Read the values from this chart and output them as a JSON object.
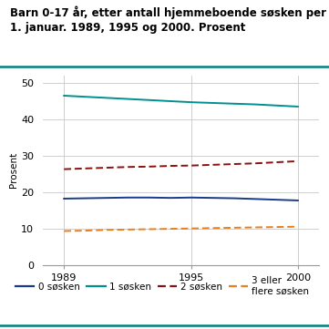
{
  "title_line1": "Barn 0-17 år, etter antall hjemmeboende søsken per",
  "title_line2": "1. januar. 1989, 1995 og 2000. Prosent",
  "ylabel": "Prosent",
  "xlim": [
    1988.0,
    2001.0
  ],
  "ylim": [
    0,
    52
  ],
  "yticks": [
    0,
    10,
    20,
    30,
    40,
    50
  ],
  "xticks": [
    1989,
    1995,
    2000
  ],
  "series": [
    {
      "label": "0 søsken",
      "x": [
        1989,
        1990,
        1991,
        1992,
        1993,
        1994,
        1995,
        1996,
        1997,
        1998,
        1999,
        2000
      ],
      "y": [
        18.2,
        18.3,
        18.4,
        18.5,
        18.5,
        18.4,
        18.5,
        18.4,
        18.3,
        18.1,
        17.9,
        17.7
      ],
      "color": "#1a3a8c",
      "linestyle": "solid",
      "linewidth": 1.4
    },
    {
      "label": "1 søsken",
      "x": [
        1989,
        1990,
        1991,
        1992,
        1993,
        1994,
        1995,
        1996,
        1997,
        1998,
        1999,
        2000
      ],
      "y": [
        46.5,
        46.2,
        45.9,
        45.6,
        45.3,
        45.0,
        44.7,
        44.5,
        44.3,
        44.1,
        43.8,
        43.5
      ],
      "color": "#009090",
      "linestyle": "solid",
      "linewidth": 1.4
    },
    {
      "label": "2 søsken",
      "x": [
        1989,
        1990,
        1991,
        1992,
        1993,
        1994,
        1995,
        1996,
        1997,
        1998,
        1999,
        2000
      ],
      "y": [
        26.3,
        26.5,
        26.7,
        26.9,
        27.0,
        27.2,
        27.3,
        27.5,
        27.7,
        27.9,
        28.2,
        28.5
      ],
      "color": "#8b1010",
      "linestyle": "dashed",
      "linewidth": 1.4,
      "dashes": [
        4,
        2
      ]
    },
    {
      "label": "3 eller\nflere søsken",
      "x": [
        1989,
        1990,
        1991,
        1992,
        1993,
        1994,
        1995,
        1996,
        1997,
        1998,
        1999,
        2000
      ],
      "y": [
        9.3,
        9.4,
        9.6,
        9.7,
        9.8,
        9.9,
        10.0,
        10.1,
        10.2,
        10.3,
        10.4,
        10.5
      ],
      "color": "#e88020",
      "linestyle": "dashed",
      "linewidth": 1.4,
      "dashes": [
        4,
        2
      ]
    }
  ],
  "legend_labels": [
    "0 søsken",
    "1 søsken",
    "2 søsken",
    "3 eller\nflere søsken"
  ],
  "legend_colors": [
    "#1a3a8c",
    "#009090",
    "#8b1010",
    "#e88020"
  ],
  "legend_linestyles": [
    "solid",
    "solid",
    "dashed",
    "dashed"
  ],
  "legend_dashes": [
    null,
    null,
    [
      4,
      2
    ],
    [
      4,
      2
    ]
  ],
  "title_fontsize": 8.5,
  "axis_label_fontsize": 7.5,
  "tick_fontsize": 8,
  "legend_fontsize": 7.5,
  "bg_color": "#ffffff",
  "header_line_color": "#008080",
  "grid_color": "#c8c8c8",
  "title_bg_color": "#f0f0f0"
}
